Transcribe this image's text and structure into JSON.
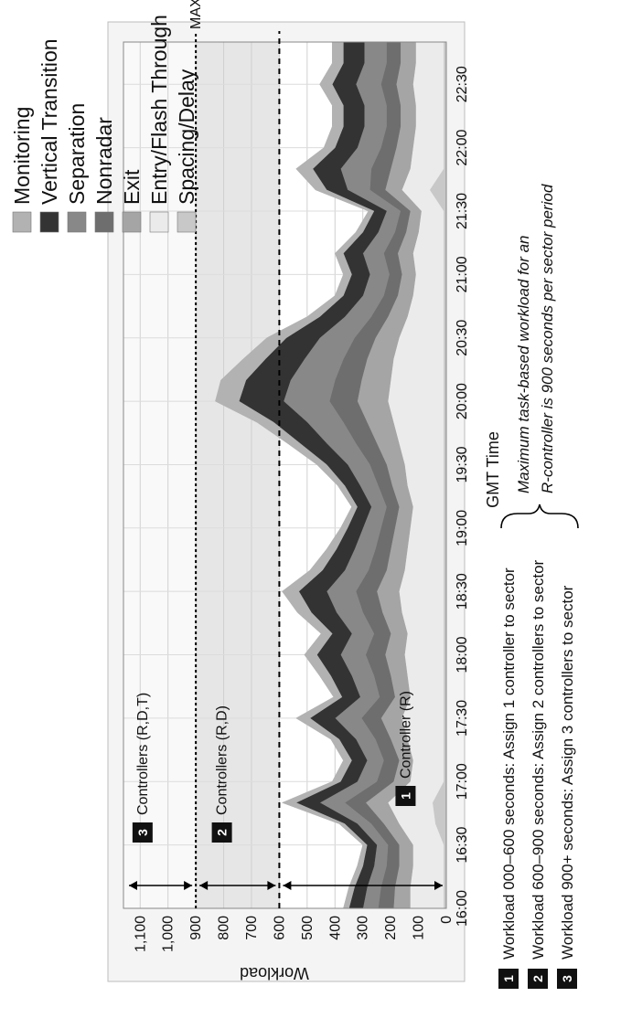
{
  "chart_data": {
    "type": "area",
    "stacked": true,
    "orientation_note": "figure rotated 90 degrees counter-clockwise",
    "xlabel": "GMT Time",
    "ylabel": "Workload",
    "x_ticks": [
      "16:00",
      "16:30",
      "17:00",
      "17:30",
      "18:00",
      "18:30",
      "19:00",
      "19:30",
      "20:00",
      "20:30",
      "21:00",
      "21:30",
      "22:00",
      "22:30"
    ],
    "y_ticks": [
      "0",
      "100",
      "200",
      "300",
      "400",
      "500",
      "600",
      "700",
      "800",
      "900",
      "1,000",
      "1,100"
    ],
    "ylim": [
      0,
      1160
    ],
    "x_range": [
      "16:00",
      "22:50"
    ],
    "grid": true,
    "legend_position": "top-right",
    "x": [
      "16:00",
      "16:10",
      "16:20",
      "16:30",
      "16:40",
      "16:50",
      "17:00",
      "17:10",
      "17:20",
      "17:30",
      "17:40",
      "17:50",
      "18:00",
      "18:10",
      "18:20",
      "18:30",
      "18:40",
      "18:50",
      "19:00",
      "19:10",
      "19:20",
      "19:30",
      "19:40",
      "19:50",
      "20:00",
      "20:10",
      "20:20",
      "20:30",
      "20:40",
      "20:50",
      "21:00",
      "21:10",
      "21:20",
      "21:30",
      "21:40",
      "21:50",
      "22:00",
      "22:10",
      "22:20",
      "22:30",
      "22:40",
      "22:50"
    ],
    "series": [
      {
        "name": "Spacing/Delay",
        "color": "#c8c8c8",
        "values": [
          10,
          10,
          10,
          10,
          40,
          50,
          10,
          10,
          10,
          10,
          10,
          10,
          10,
          10,
          10,
          10,
          10,
          10,
          10,
          10,
          10,
          10,
          10,
          10,
          10,
          10,
          10,
          10,
          10,
          10,
          10,
          10,
          10,
          10,
          60,
          10,
          10,
          10,
          10,
          10,
          10,
          10
        ]
      },
      {
        "name": "Entry/Flash Through",
        "color": "#ebebeb",
        "values": [
          120,
          120,
          110,
          110,
          130,
          160,
          120,
          110,
          130,
          150,
          120,
          130,
          140,
          130,
          150,
          160,
          140,
          130,
          120,
          110,
          130,
          140,
          160,
          180,
          200,
          190,
          180,
          160,
          130,
          110,
          100,
          110,
          90,
          80,
          100,
          120,
          110,
          100,
          100,
          110,
          100,
          100
        ]
      },
      {
        "name": "Exit",
        "color": "#a5a5a5",
        "values": [
          60,
          55,
          50,
          50,
          55,
          80,
          60,
          50,
          60,
          75,
          55,
          60,
          70,
          60,
          70,
          80,
          65,
          60,
          55,
          50,
          55,
          65,
          80,
          95,
          110,
          105,
          95,
          85,
          70,
          55,
          50,
          55,
          45,
          40,
          60,
          70,
          60,
          55,
          55,
          60,
          55,
          55
        ]
      },
      {
        "name": "Nonradar",
        "color": "#6e6e6e",
        "values": [
          55,
          50,
          45,
          40,
          45,
          75,
          60,
          55,
          55,
          70,
          55,
          60,
          70,
          60,
          70,
          75,
          65,
          55,
          50,
          45,
          50,
          60,
          75,
          85,
          100,
          95,
          85,
          75,
          60,
          50,
          45,
          50,
          40,
          35,
          55,
          70,
          55,
          50,
          50,
          55,
          50,
          50
        ]
      },
      {
        "name": "Separation",
        "color": "#888888",
        "values": [
          55,
          50,
          45,
          40,
          50,
          90,
          70,
          60,
          70,
          95,
          70,
          80,
          90,
          80,
          95,
          105,
          85,
          75,
          65,
          55,
          65,
          80,
          105,
          130,
          165,
          160,
          140,
          125,
          95,
          75,
          70,
          75,
          60,
          50,
          80,
          110,
          85,
          80,
          80,
          90,
          80,
          80
        ]
      },
      {
        "name": "Vertical Transition",
        "color": "#333333",
        "values": [
          50,
          45,
          40,
          35,
          45,
          85,
          60,
          55,
          60,
          90,
          65,
          75,
          85,
          70,
          90,
          100,
          80,
          65,
          55,
          50,
          55,
          75,
          95,
          120,
          160,
          160,
          140,
          120,
          90,
          70,
          65,
          70,
          55,
          45,
          75,
          100,
          80,
          75,
          75,
          85,
          75,
          75
        ]
      },
      {
        "name": "Monitoring",
        "color": "#b2b2b2",
        "values": [
          20,
          20,
          20,
          15,
          20,
          50,
          30,
          30,
          30,
          50,
          30,
          40,
          45,
          40,
          50,
          60,
          45,
          35,
          25,
          20,
          25,
          35,
          45,
          60,
          85,
          90,
          80,
          70,
          45,
          30,
          30,
          30,
          25,
          20,
          40,
          60,
          40,
          40,
          40,
          45,
          40,
          40
        ]
      }
    ],
    "reference_lines": [
      {
        "value": 600,
        "style": "dashed"
      },
      {
        "value": 900,
        "style": "dotted",
        "label": "MAX"
      }
    ],
    "annotations": [
      {
        "badge": "1",
        "label": "Controller (R)",
        "range": [
          0,
          600
        ]
      },
      {
        "badge": "2",
        "label": "Controllers (R,D)",
        "range": [
          600,
          900
        ]
      },
      {
        "badge": "3",
        "label": "Controllers (R,D,T)",
        "range": [
          900,
          1160
        ]
      }
    ]
  },
  "labels": {
    "ylabel": "Workload",
    "xlabel": "GMT Time",
    "max": "MAX",
    "ann_r": "Controller (R)",
    "ann_rd": "Controllers (R,D)",
    "ann_rdt": "Controllers (R,D,T)",
    "badge1": "1",
    "badge2": "2",
    "badge3": "3"
  },
  "legend": [
    {
      "label": "Monitoring",
      "color": "#b2b2b2"
    },
    {
      "label": "Vertical Transition",
      "color": "#333333"
    },
    {
      "label": "Separation",
      "color": "#888888"
    },
    {
      "label": "Nonradar",
      "color": "#6e6e6e"
    },
    {
      "label": "Exit",
      "color": "#a5a5a5"
    },
    {
      "label": "Entry/Flash Through",
      "color": "#ebebeb"
    },
    {
      "label": "Spacing/Delay",
      "color": "#c8c8c8"
    }
  ],
  "notes": {
    "rows": [
      {
        "badge": "1",
        "text": "Workload 000–600 seconds:   Assign 1 controller to sector"
      },
      {
        "badge": "2",
        "text": "Workload 600–900 seconds:   Assign 2 controllers to sector"
      },
      {
        "badge": "3",
        "text": "Workload 900+ seconds:   Assign 3 controllers to sector"
      }
    ],
    "bracket_line1": "Maximum task-based workload for an",
    "bracket_line2": "R-controller is 900 seconds per sector period"
  }
}
